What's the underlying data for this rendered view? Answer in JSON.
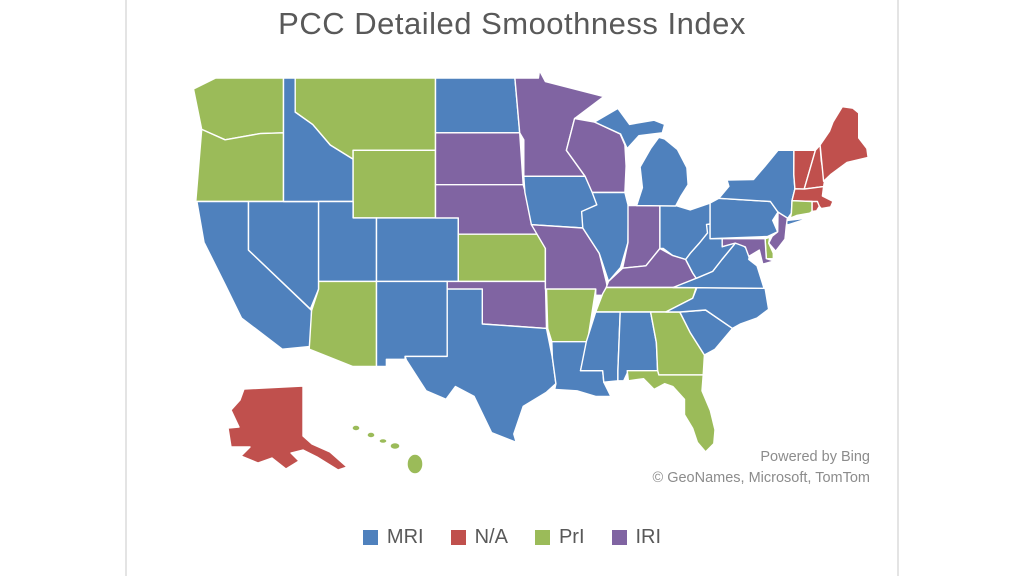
{
  "title": "PCC Detailed Smoothness Index",
  "attribution": {
    "line1": "Powered by Bing",
    "line2": "© GeoNames, Microsoft, TomTom"
  },
  "legend": {
    "items": [
      {
        "label": "MRI",
        "color": "#4F81BD"
      },
      {
        "label": "N/A",
        "color": "#C0504D"
      },
      {
        "label": "PrI",
        "color": "#9BBB59"
      },
      {
        "label": "IRI",
        "color": "#8064A2"
      }
    ]
  },
  "chart_data": {
    "type": "choropleth_map",
    "title": "PCC Detailed Smoothness Index",
    "region": "United States (50 states)",
    "legend_position": "bottom-center",
    "basemap_attribution": [
      "Powered by Bing",
      "© GeoNames, Microsoft, TomTom"
    ],
    "category_colors": {
      "MRI": "#4F81BD",
      "N/A": "#C0504D",
      "PrI": "#9BBB59",
      "IRI": "#8064A2"
    },
    "states": {
      "AL": "MRI",
      "AK": "N/A",
      "AZ": "PrI",
      "AR": "PrI",
      "CA": "MRI",
      "CO": "MRI",
      "CT": "PrI",
      "DE": "PrI",
      "FL": "PrI",
      "GA": "PrI",
      "HI": "PrI",
      "ID": "MRI",
      "IL": "MRI",
      "IN": "IRI",
      "IA": "MRI",
      "KS": "PrI",
      "KY": "IRI",
      "LA": "MRI",
      "ME": "N/A",
      "MD": "IRI",
      "MA": "N/A",
      "MI": "MRI",
      "MN": "IRI",
      "MS": "MRI",
      "MO": "IRI",
      "MT": "PrI",
      "NE": "IRI",
      "NV": "MRI",
      "NH": "N/A",
      "NJ": "IRI",
      "NM": "MRI",
      "NY": "MRI",
      "NC": "MRI",
      "ND": "MRI",
      "OH": "MRI",
      "OK": "IRI",
      "OR": "PrI",
      "PA": "MRI",
      "RI": "N/A",
      "SC": "MRI",
      "SD": "IRI",
      "TN": "PrI",
      "TX": "MRI",
      "UT": "MRI",
      "VT": "N/A",
      "VA": "MRI",
      "WA": "PrI",
      "WV": "MRI",
      "WI": "IRI",
      "WY": "PrI"
    }
  }
}
